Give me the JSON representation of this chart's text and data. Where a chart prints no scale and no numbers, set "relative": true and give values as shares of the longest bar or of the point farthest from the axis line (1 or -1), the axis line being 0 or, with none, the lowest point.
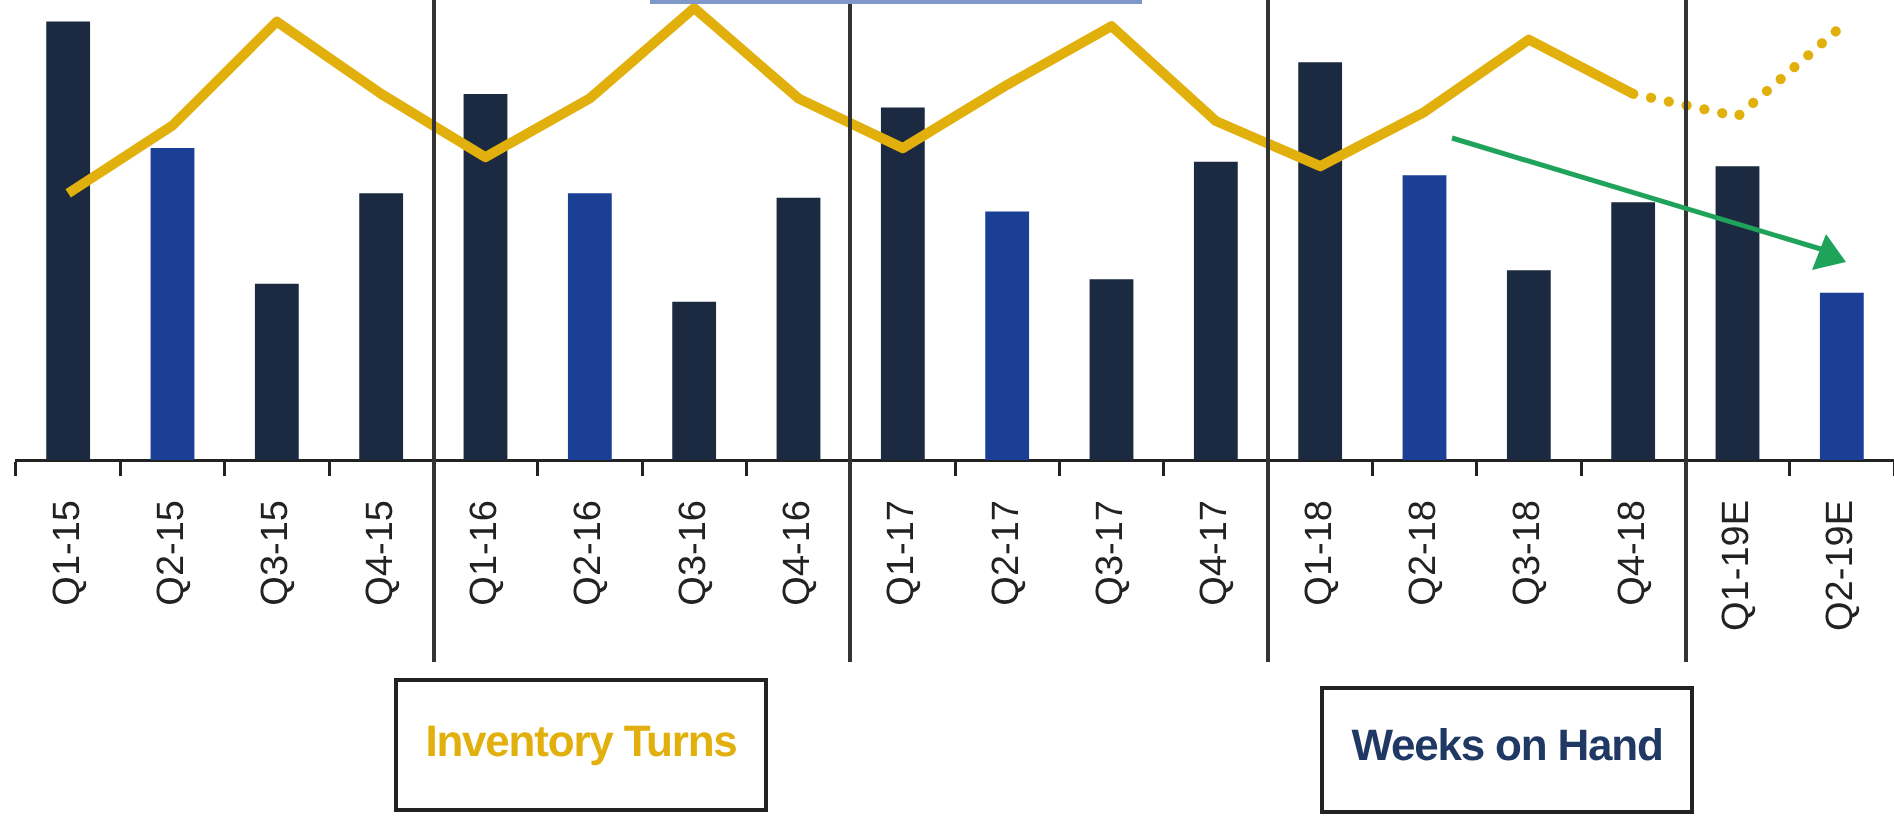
{
  "chart_data": {
    "type": "bar",
    "relative": true,
    "categories": [
      "Q1-15",
      "Q2-15",
      "Q3-15",
      "Q4-15",
      "Q1-16",
      "Q2-16",
      "Q3-16",
      "Q4-16",
      "Q1-17",
      "Q2-17",
      "Q3-17",
      "Q4-17",
      "Q1-18",
      "Q2-18",
      "Q3-18",
      "Q4-18",
      "Q1-19E",
      "Q2-19E"
    ],
    "series": [
      {
        "name": "Inventory Turns",
        "type": "line",
        "color": "#e2b00c",
        "line_style": "solid",
        "values": [
          0.59,
          0.74,
          0.97,
          0.81,
          0.67,
          0.8,
          1,
          0.8,
          0.69,
          0.83,
          0.96,
          0.75,
          0.65,
          0.77,
          0.93,
          0.81,
          null,
          null
        ]
      },
      {
        "type": "line",
        "color": "#e2b00c",
        "line_style": "dotted",
        "values": [
          null,
          null,
          null,
          null,
          null,
          null,
          null,
          null,
          null,
          null,
          null,
          null,
          null,
          null,
          null,
          0.81,
          0.76,
          0.96
        ]
      },
      {
        "name": "Weeks on Hand",
        "color": "#1f3864",
        "colors": [
          "#1b2a41",
          "#1a3f95",
          "#1b2a41",
          "#1b2a41",
          "#1b2a41",
          "#1a3f95",
          "#1b2a41",
          "#1b2a41",
          "#1b2a41",
          "#1a3f95",
          "#1b2a41",
          "#1b2a41",
          "#1b2a41",
          "#1a3f95",
          "#1b2a41",
          "#1b2a41",
          "#1b2a41",
          "#1a3f95"
        ],
        "values": [
          0.97,
          0.69,
          0.39,
          0.59,
          0.81,
          0.59,
          0.35,
          0.58,
          0.78,
          0.55,
          0.4,
          0.66,
          0.88,
          0.63,
          0.42,
          0.57,
          0.65,
          0.37
        ]
      }
    ],
    "legend": "bottom",
    "marker": "none"
  }
}
